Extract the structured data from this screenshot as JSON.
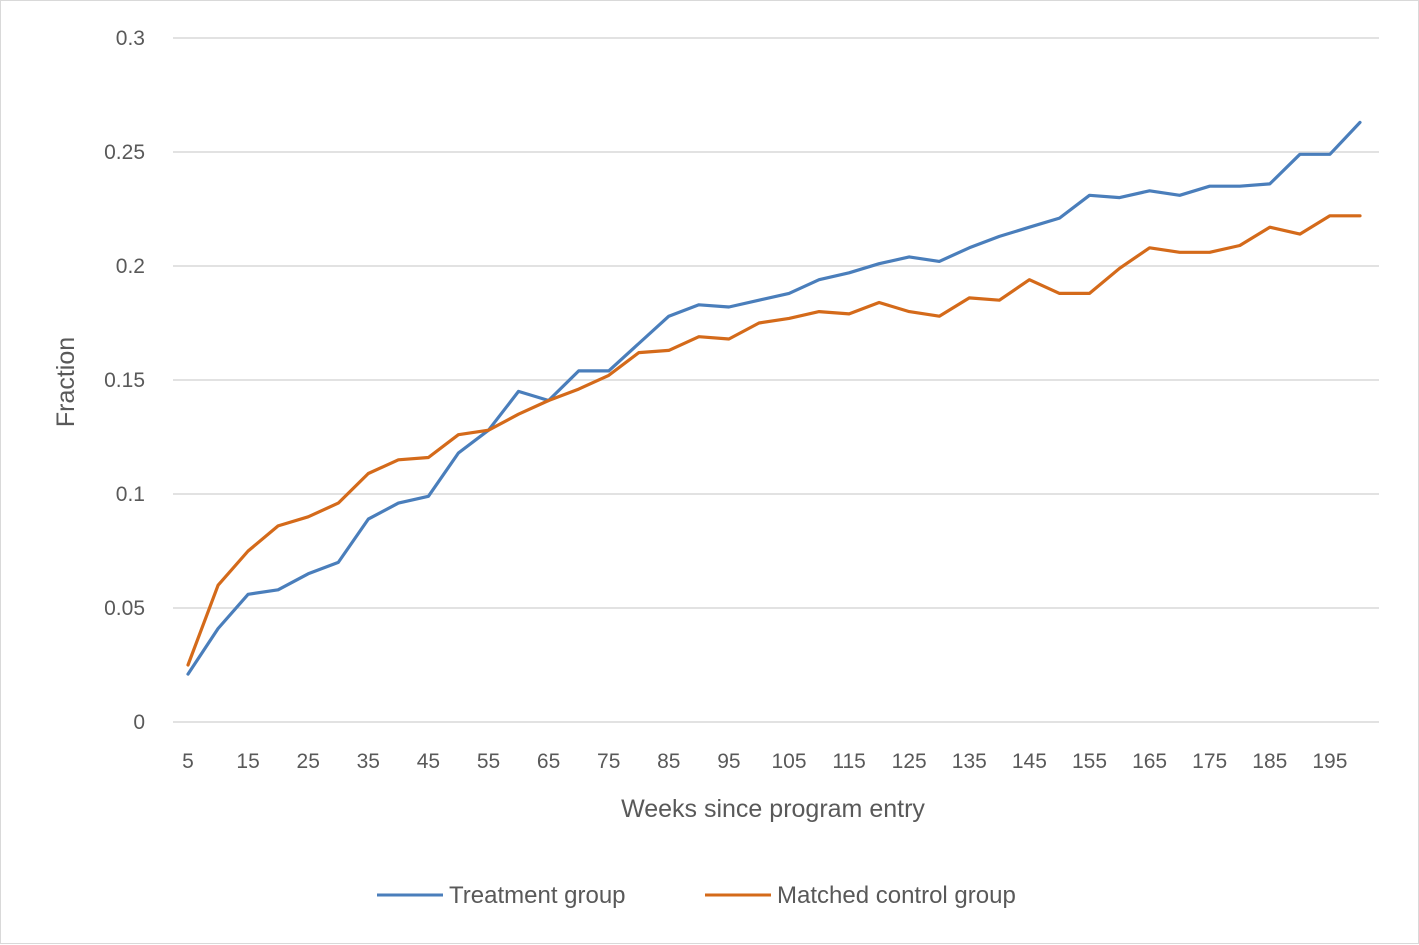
{
  "chart_data": {
    "type": "line",
    "title": "",
    "xlabel": "Weeks since program entry",
    "ylabel": "Fraction",
    "x": [
      5,
      10,
      15,
      20,
      25,
      30,
      35,
      40,
      45,
      50,
      55,
      60,
      65,
      70,
      75,
      80,
      85,
      90,
      95,
      100,
      105,
      110,
      115,
      120,
      125,
      130,
      135,
      140,
      145,
      150,
      155,
      160,
      165,
      170,
      175,
      180,
      185,
      190,
      195,
      200
    ],
    "x_tick_labels": [
      "5",
      "15",
      "25",
      "35",
      "45",
      "55",
      "65",
      "75",
      "85",
      "95",
      "105",
      "115",
      "125",
      "135",
      "145",
      "155",
      "165",
      "175",
      "185",
      "195"
    ],
    "y_tick_labels": [
      "0",
      "0.05",
      "0.1",
      "0.15",
      "0.2",
      "0.25",
      "0.3"
    ],
    "ylim": [
      0,
      0.3
    ],
    "grid": true,
    "legend_position": "bottom",
    "series": [
      {
        "name": "Treatment group",
        "color": "#4a7ebb",
        "values": [
          0.021,
          0.041,
          0.056,
          0.058,
          0.065,
          0.07,
          0.089,
          0.096,
          0.099,
          0.118,
          0.128,
          0.145,
          0.141,
          0.154,
          0.154,
          0.166,
          0.178,
          0.183,
          0.182,
          0.185,
          0.188,
          0.194,
          0.197,
          0.201,
          0.204,
          0.202,
          0.208,
          0.213,
          0.217,
          0.221,
          0.231,
          0.23,
          0.233,
          0.231,
          0.235,
          0.235,
          0.236,
          0.249,
          0.249,
          0.263
        ]
      },
      {
        "name": "Matched control group",
        "color": "#d46a1a",
        "values": [
          0.025,
          0.06,
          0.075,
          0.086,
          0.09,
          0.096,
          0.109,
          0.115,
          0.116,
          0.126,
          0.128,
          0.135,
          0.141,
          0.146,
          0.152,
          0.162,
          0.163,
          0.169,
          0.168,
          0.175,
          0.177,
          0.18,
          0.179,
          0.184,
          0.18,
          0.178,
          0.186,
          0.185,
          0.194,
          0.188,
          0.188,
          0.199,
          0.208,
          0.206,
          0.206,
          0.209,
          0.217,
          0.214,
          0.222,
          0.222
        ]
      }
    ]
  }
}
